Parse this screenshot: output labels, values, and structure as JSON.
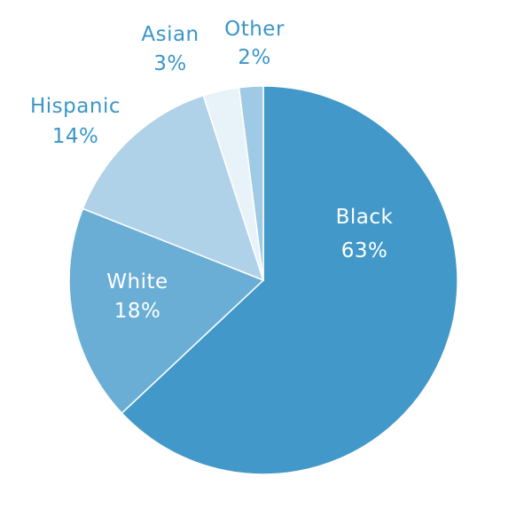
{
  "chart_data": {
    "type": "pie",
    "title": "",
    "slices": [
      {
        "name": "Black",
        "value": 63,
        "display": "63%",
        "color": "#4299c9",
        "label_color": "#ffffff",
        "label_placement": "inside"
      },
      {
        "name": "White",
        "value": 18,
        "display": "18%",
        "color": "#6aaed6",
        "label_color": "#ffffff",
        "label_placement": "inside"
      },
      {
        "name": "Hispanic",
        "value": 14,
        "display": "14%",
        "color": "#afd2e8",
        "label_color": "#3a96c8",
        "label_placement": "outside"
      },
      {
        "name": "Asian",
        "value": 3,
        "display": "3%",
        "color": "#e8f2f9",
        "label_color": "#3a96c8",
        "label_placement": "outside"
      },
      {
        "name": "Other",
        "value": 2,
        "display": "2%",
        "color": "#9fcae5",
        "label_color": "#3a96c8",
        "label_placement": "outside"
      }
    ],
    "start": "top",
    "direction": "clockwise",
    "legend": "none"
  }
}
